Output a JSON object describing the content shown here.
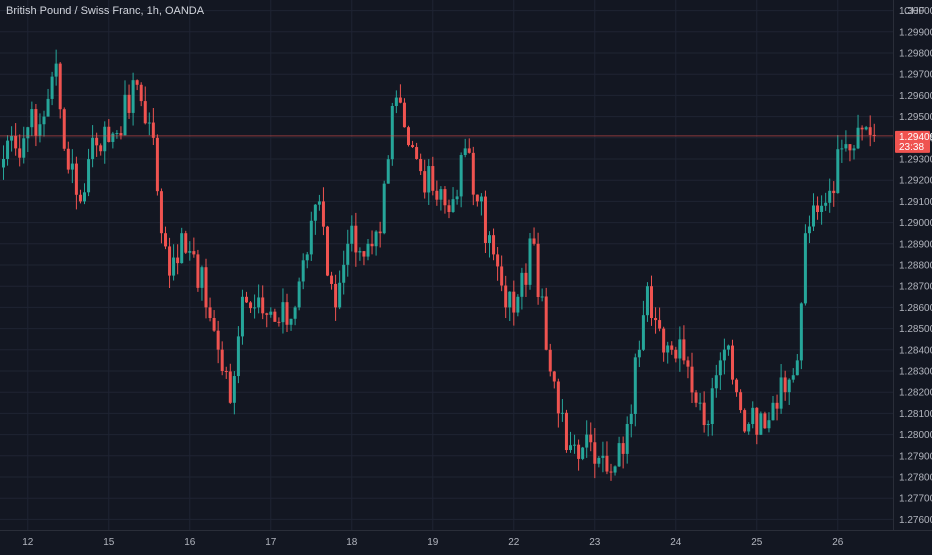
{
  "chart_data": {
    "type": "candlestick",
    "title": "British Pound / Swiss Franc, 1h, OANDA",
    "currency": "CHF",
    "ylim": [
      1.2755,
      1.3005
    ],
    "y_ticks": [
      "1.27600",
      "1.27700",
      "1.27800",
      "1.27900",
      "1.28000",
      "1.28100",
      "1.28200",
      "1.28300",
      "1.28400",
      "1.28500",
      "1.28600",
      "1.28700",
      "1.28800",
      "1.28900",
      "1.29000",
      "1.29100",
      "1.29200",
      "1.29300",
      "1.29400",
      "1.29500",
      "1.29600",
      "1.29700",
      "1.29800",
      "1.29900",
      "1.30000"
    ],
    "x_ticks": [
      {
        "label": "12",
        "bar": 6
      },
      {
        "label": "15",
        "bar": 26
      },
      {
        "label": "16",
        "bar": 46
      },
      {
        "label": "17",
        "bar": 66
      },
      {
        "label": "18",
        "bar": 86
      },
      {
        "label": "19",
        "bar": 106
      },
      {
        "label": "22",
        "bar": 126
      },
      {
        "label": "23",
        "bar": 146
      },
      {
        "label": "24",
        "bar": 166
      },
      {
        "label": "25",
        "bar": 186
      },
      {
        "label": "26",
        "bar": 206
      }
    ],
    "current_price": "1.29409",
    "countdown": "23:38",
    "colors": {
      "up": "#26a69a",
      "down": "#ef5350",
      "background": "#131722",
      "grid": "#1f2433",
      "text": "#b2b5be"
    },
    "grid": true,
    "anchors": [
      [
        0,
        1.293
      ],
      [
        3,
        1.2935
      ],
      [
        6,
        1.2945
      ],
      [
        10,
        1.295
      ],
      [
        13,
        1.2975
      ],
      [
        16,
        1.2925
      ],
      [
        19,
        1.291
      ],
      [
        22,
        1.294
      ],
      [
        27,
        1.2942
      ],
      [
        33,
        1.2965
      ],
      [
        37,
        1.294
      ],
      [
        39,
        1.2895
      ],
      [
        41,
        1.2875
      ],
      [
        44,
        1.2895
      ],
      [
        47,
        1.2885
      ],
      [
        51,
        1.2855
      ],
      [
        54,
        1.283
      ],
      [
        56,
        1.2815
      ],
      [
        59,
        1.2865
      ],
      [
        62,
        1.286
      ],
      [
        66,
        1.2858
      ],
      [
        72,
        1.286
      ],
      [
        75,
        1.2885
      ],
      [
        78,
        1.291
      ],
      [
        80,
        1.2875
      ],
      [
        82,
        1.286
      ],
      [
        85,
        1.289
      ],
      [
        90,
        1.289
      ],
      [
        93,
        1.2895
      ],
      [
        96,
        1.2955
      ],
      [
        99,
        1.2945
      ],
      [
        102,
        1.293
      ],
      [
        106,
        1.2915
      ],
      [
        110,
        1.2905
      ],
      [
        114,
        1.2935
      ],
      [
        117,
        1.291
      ],
      [
        121,
        1.2885
      ],
      [
        124,
        1.286
      ],
      [
        127,
        1.2865
      ],
      [
        131,
        1.289
      ],
      [
        134,
        1.284
      ],
      [
        137,
        1.281
      ],
      [
        140,
        1.2795
      ],
      [
        144,
        1.28
      ],
      [
        148,
        1.279
      ],
      [
        151,
        1.2785
      ],
      [
        154,
        1.2805
      ],
      [
        157,
        1.284
      ],
      [
        159,
        1.287
      ],
      [
        162,
        1.285
      ],
      [
        165,
        1.284
      ],
      [
        168,
        1.2835
      ],
      [
        171,
        1.2815
      ],
      [
        174,
        1.2805
      ],
      [
        177,
        1.2835
      ],
      [
        179,
        1.2842
      ],
      [
        181,
        1.282
      ],
      [
        184,
        1.2805
      ],
      [
        187,
        1.281
      ],
      [
        190,
        1.2815
      ],
      [
        193,
        1.282
      ],
      [
        196,
        1.2835
      ],
      [
        198,
        1.2895
      ],
      [
        201,
        1.2905
      ],
      [
        204,
        1.2915
      ],
      [
        207,
        1.2935
      ],
      [
        210,
        1.2935
      ],
      [
        213,
        1.2945
      ],
      [
        215,
        1.2941
      ]
    ]
  }
}
